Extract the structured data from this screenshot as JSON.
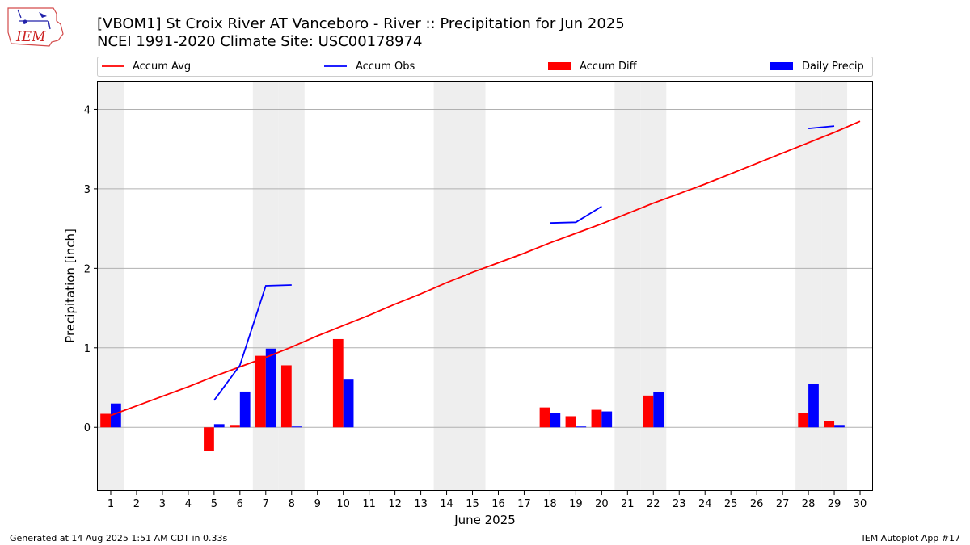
{
  "chart_data": {
    "type": "bar",
    "title": "[VBOM1] St Croix River  AT Vanceboro - River :: Precipitation for Jun 2025",
    "subtitle": "NCEI 1991-2020 Climate Site: USC00178974",
    "xlabel": "June 2025",
    "ylabel": "Precipitation [inch]",
    "xlim": [
      0.5,
      30.5
    ],
    "ylim": [
      -0.8,
      4.35
    ],
    "yticks": [
      0,
      1,
      2,
      3,
      4
    ],
    "xticks": [
      1,
      2,
      3,
      4,
      5,
      6,
      7,
      8,
      9,
      10,
      11,
      12,
      13,
      14,
      15,
      16,
      17,
      18,
      19,
      20,
      21,
      22,
      23,
      24,
      25,
      26,
      27,
      28,
      29,
      30
    ],
    "grid": "y",
    "legend_position": "top",
    "weekend_shading_days": [
      1,
      7,
      8,
      14,
      15,
      21,
      22,
      28,
      29
    ],
    "weekend_color": "#eeeeee",
    "series": [
      {
        "name": "Accum Avg",
        "kind": "line",
        "color": "#ff0000",
        "x": [
          1,
          2,
          3,
          4,
          5,
          6,
          7,
          8,
          9,
          10,
          11,
          12,
          13,
          14,
          15,
          16,
          17,
          18,
          19,
          20,
          21,
          22,
          23,
          24,
          25,
          26,
          27,
          28,
          29,
          30
        ],
        "values": [
          0.15,
          0.27,
          0.39,
          0.51,
          0.64,
          0.76,
          0.88,
          1.01,
          1.15,
          1.28,
          1.41,
          1.55,
          1.68,
          1.82,
          1.95,
          2.07,
          2.19,
          2.32,
          2.44,
          2.56,
          2.69,
          2.82,
          2.94,
          3.06,
          3.19,
          3.32,
          3.45,
          3.58,
          3.71,
          3.85
        ]
      },
      {
        "name": "Accum Obs",
        "kind": "line",
        "color": "#0000ff",
        "x": [
          1,
          2,
          3,
          4,
          5,
          6,
          7,
          8,
          9,
          10,
          11,
          12,
          13,
          14,
          15,
          16,
          17,
          18,
          19,
          20,
          21,
          22,
          23,
          24,
          25,
          26,
          27,
          28,
          29,
          30
        ],
        "values": [
          null,
          null,
          null,
          null,
          0.34,
          0.78,
          1.78,
          1.79,
          null,
          null,
          null,
          null,
          null,
          null,
          null,
          null,
          null,
          2.57,
          2.58,
          2.78,
          null,
          null,
          null,
          null,
          null,
          null,
          null,
          3.76,
          3.79,
          null
        ]
      },
      {
        "name": "Accum Diff",
        "kind": "bar",
        "color": "#ff0000",
        "x": [
          1,
          5,
          6,
          7,
          8,
          10,
          18,
          19,
          20,
          22,
          28,
          29
        ],
        "values": [
          0.17,
          -0.3,
          0.03,
          0.9,
          0.78,
          1.11,
          0.25,
          0.14,
          0.22,
          0.4,
          0.18,
          0.08
        ]
      },
      {
        "name": "Daily Precip",
        "kind": "bar",
        "color": "#0000ff",
        "x": [
          1,
          5,
          6,
          7,
          8,
          10,
          18,
          19,
          20,
          22,
          28,
          29
        ],
        "values": [
          0.3,
          0.04,
          0.45,
          0.99,
          0.01,
          0.6,
          0.18,
          0.01,
          0.2,
          0.44,
          0.55,
          0.03
        ]
      }
    ]
  },
  "logo": {
    "text": "IEM"
  },
  "footer": {
    "left": "Generated at 14 Aug 2025 1:51 AM CDT in 0.33s",
    "right": "IEM Autoplot App #17"
  }
}
